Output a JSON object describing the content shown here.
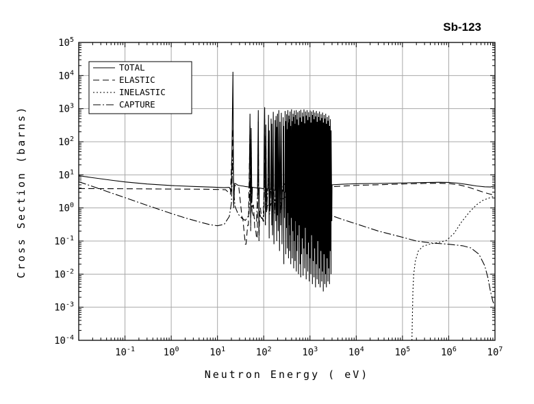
{
  "title": "Sb-123",
  "axes": {
    "x_log_min": -2,
    "x_log_max": 7,
    "y_log_min": -4,
    "y_log_max": 5,
    "x_tick_exponents": [
      -1,
      0,
      1,
      2,
      3,
      4,
      5,
      6,
      7
    ],
    "y_tick_exponents": [
      5,
      4,
      3,
      2,
      1,
      0,
      -1,
      -2,
      -3,
      -4
    ],
    "grid_color": "#a8a8a8",
    "line_color": "#000000"
  },
  "chart_data": {
    "type": "line",
    "title": "Sb-123",
    "xlabel": "Neutron Energy ( eV)",
    "ylabel": "Cross Section (barns)",
    "xscale": "log",
    "yscale": "log",
    "xlim": [
      0.01,
      10000000
    ],
    "ylim": [
      0.0001,
      100000
    ],
    "grid": true,
    "legend_position": "top-left",
    "series": [
      {
        "name": "TOTAL",
        "dash": "",
        "points": [
          [
            0.01,
            9.4
          ],
          [
            0.02,
            8.2
          ],
          [
            0.05,
            6.9
          ],
          [
            0.1,
            6.1
          ],
          [
            0.3,
            5.3
          ],
          [
            1,
            4.75
          ],
          [
            3,
            4.45
          ],
          [
            8,
            4.25
          ],
          [
            14,
            4.1
          ],
          [
            18,
            4.2
          ],
          [
            20,
            3.1
          ],
          [
            21.6,
            13000,
            1.2
          ],
          [
            23.5,
            5.5,
            5.5
          ],
          [
            28,
            4.8,
            4.8
          ],
          [
            34,
            4.6,
            4.6
          ],
          [
            41,
            4.4,
            4.4
          ],
          [
            47,
            4.3,
            4.3
          ],
          [
            50.5,
            700,
            0.5
          ],
          [
            53.5,
            260,
            1.5
          ],
          [
            57,
            4.2,
            4.2
          ],
          [
            64,
            4.1,
            4.1
          ],
          [
            71,
            4.0,
            4.0
          ],
          [
            76.3,
            900,
            0.15
          ],
          [
            80,
            4.0,
            4.0
          ],
          [
            88,
            3.9,
            3.9
          ],
          [
            97,
            3.8,
            3.8
          ],
          [
            104.8,
            1100,
            0.3
          ],
          [
            111.4,
            330,
            0.8
          ],
          [
            118,
            3.8,
            3.8
          ],
          [
            126.8,
            650,
            0.12
          ],
          [
            131.9,
            220,
            0.9
          ],
          [
            138,
            3.6,
            3.6
          ],
          [
            144.3,
            500,
            0.3
          ],
          [
            149.9,
            350,
            0.15
          ],
          [
            160.8,
            800,
            0.08
          ],
          [
            168,
            3.4,
            3.4
          ],
          [
            176,
            450,
            0.4
          ],
          [
            184.7,
            600,
            0.1
          ],
          [
            191.8,
            280,
            0.6
          ],
          [
            198.5,
            700,
            0.2
          ],
          [
            212,
            900,
            0.05
          ],
          [
            225,
            400,
            0.3
          ],
          [
            240,
            750,
            0.08
          ],
          [
            252,
            3.2,
            3.2
          ],
          [
            263,
            550,
            0.02
          ],
          [
            270,
            300,
            0.5
          ],
          [
            281,
            3.0,
            3.0
          ],
          [
            290,
            850,
            0.04
          ],
          [
            299,
            420,
            0.25
          ],
          [
            312,
            680,
            0.06
          ],
          [
            322,
            240,
            0.7
          ],
          [
            332,
            900,
            0.03
          ],
          [
            341,
            380,
            0.3
          ],
          [
            350,
            620,
            0.05
          ],
          [
            361,
            480,
            0.15
          ],
          [
            371,
            820,
            0.02
          ],
          [
            383,
            300,
            0.5
          ],
          [
            399,
            950,
            0.03
          ],
          [
            413,
            420,
            0.2
          ],
          [
            430,
            700,
            0.015
          ],
          [
            444,
            560,
            0.1
          ],
          [
            459,
            880,
            0.025
          ],
          [
            476,
            350,
            0.4
          ],
          [
            489,
            640,
            0.012
          ],
          [
            505,
            900,
            0.05
          ],
          [
            525,
            470,
            0.15
          ],
          [
            545,
            780,
            0.01
          ],
          [
            566,
            320,
            0.3
          ],
          [
            588,
            860,
            0.02
          ],
          [
            611,
            540,
            0.008
          ],
          [
            635,
            920,
            0.04
          ],
          [
            660,
            400,
            0.12
          ],
          [
            686,
            760,
            0.009
          ],
          [
            713,
            580,
            0.06
          ],
          [
            741,
            950,
            0.015
          ],
          [
            770,
            360,
            0.25
          ],
          [
            800,
            820,
            0.007
          ],
          [
            832,
            620,
            0.04
          ],
          [
            865,
            900,
            0.012
          ],
          [
            899,
            450,
            0.09
          ],
          [
            934,
            780,
            0.006
          ],
          [
            971,
            560,
            0.03
          ],
          [
            1010,
            880,
            0.01
          ],
          [
            1050,
            380,
            0.15
          ],
          [
            1091,
            820,
            0.005
          ],
          [
            1134,
            640,
            0.025
          ],
          [
            1179,
            900,
            0.008
          ],
          [
            1225,
            480,
            0.06
          ],
          [
            1273,
            760,
            0.004
          ],
          [
            1323,
            580,
            0.02
          ],
          [
            1375,
            850,
            0.007
          ],
          [
            1429,
            400,
            0.1
          ],
          [
            1486,
            720,
            0.005
          ],
          [
            1544,
            560,
            0.015
          ],
          [
            1605,
            820,
            0.004
          ],
          [
            1668,
            440,
            0.05
          ],
          [
            1734,
            680,
            0.006
          ],
          [
            1802,
            520,
            0.012
          ],
          [
            1873,
            760,
            0.003
          ],
          [
            1947,
            380,
            0.04
          ],
          [
            2024,
            640,
            0.005
          ],
          [
            2104,
            500,
            0.01
          ],
          [
            2187,
            700,
            0.004
          ],
          [
            2273,
            350,
            0.03
          ],
          [
            2362,
            560,
            0.006
          ],
          [
            2455,
            430,
            0.015
          ],
          [
            2552,
            620,
            0.005
          ],
          [
            2653,
            300,
            0.05
          ],
          [
            2757,
            480,
            0.01
          ],
          [
            2866,
            220,
            0.4
          ],
          [
            3000,
            5.0
          ],
          [
            5000,
            5.2
          ],
          [
            10000,
            5.4
          ],
          [
            30000,
            5.5
          ],
          [
            100000,
            5.7
          ],
          [
            300000,
            5.85
          ],
          [
            600000,
            5.95
          ],
          [
            1000000,
            5.9
          ],
          [
            1600000,
            5.6
          ],
          [
            2500000,
            5.1
          ],
          [
            4000000,
            4.6
          ],
          [
            6000000,
            4.35
          ],
          [
            8000000,
            4.3
          ],
          [
            10000000,
            4.6
          ]
        ]
      },
      {
        "name": "ELASTIC",
        "dash": "9,5",
        "points": [
          [
            0.01,
            3.85
          ],
          [
            0.1,
            3.8
          ],
          [
            1,
            3.72
          ],
          [
            5,
            3.68
          ],
          [
            10,
            3.62
          ],
          [
            15,
            3.55
          ],
          [
            19,
            2.6
          ],
          [
            21.6,
            250,
            1.0
          ],
          [
            23.5,
            4.8,
            4.8
          ],
          [
            28,
            4.2,
            4.2
          ],
          [
            34,
            0.5,
            0.5
          ],
          [
            40,
            0.08,
            0.08
          ],
          [
            45,
            0.3,
            0.3
          ],
          [
            50.5,
            300,
            0.2
          ],
          [
            53.5,
            120,
            0.8
          ],
          [
            58,
            1.2,
            1.2
          ],
          [
            64,
            0.25,
            0.25
          ],
          [
            70,
            0.12,
            0.12
          ],
          [
            76.3,
            400,
            0.1
          ],
          [
            82,
            1.0,
            1.0
          ],
          [
            90,
            0.5,
            0.5
          ],
          [
            97,
            0.4,
            0.4
          ],
          [
            104.8,
            500,
            0.3
          ],
          [
            111.4,
            150,
            0.7
          ],
          [
            120,
            1.2,
            1.2
          ],
          [
            130,
            1.0,
            1.0
          ],
          [
            145,
            1.4,
            1.4
          ],
          [
            160,
            1.8,
            1.8
          ],
          [
            180,
            1.6,
            1.6
          ],
          [
            200,
            2.0,
            2.0
          ],
          [
            250,
            1.9,
            1.9
          ],
          [
            300,
            2.2,
            2.2
          ],
          [
            400,
            2.0,
            2.0
          ],
          [
            500,
            2.3,
            2.3
          ],
          [
            700,
            2.5,
            2.5
          ],
          [
            1000,
            2.7,
            2.7
          ],
          [
            1500,
            3.1,
            3.1
          ],
          [
            2000,
            3.4,
            3.4
          ],
          [
            2900,
            4.1,
            4.1
          ],
          [
            3000,
            4.4
          ],
          [
            10000,
            4.8
          ],
          [
            30000,
            5.0
          ],
          [
            100000,
            5.3
          ],
          [
            300000,
            5.5
          ],
          [
            600000,
            5.55
          ],
          [
            1000000,
            5.45
          ],
          [
            1600000,
            5.05
          ],
          [
            2500000,
            4.35
          ],
          [
            4000000,
            3.5
          ],
          [
            6000000,
            2.9
          ],
          [
            8000000,
            2.6
          ],
          [
            10000000,
            2.4
          ]
        ]
      },
      {
        "name": "INELASTIC",
        "dash": "2,3",
        "points": [
          [
            160000,
            0.0001
          ],
          [
            168000,
            0.003
          ],
          [
            175000,
            0.01
          ],
          [
            190000,
            0.025
          ],
          [
            220000,
            0.05
          ],
          [
            280000,
            0.07
          ],
          [
            400000,
            0.082
          ],
          [
            600000,
            0.09
          ],
          [
            900000,
            0.105
          ],
          [
            1300000,
            0.17
          ],
          [
            1900000,
            0.38
          ],
          [
            2800000,
            0.75
          ],
          [
            4000000,
            1.25
          ],
          [
            5500000,
            1.7
          ],
          [
            7500000,
            2.0
          ],
          [
            10000000,
            2.3
          ]
        ]
      },
      {
        "name": "CAPTURE",
        "dash": "11,3,2,3",
        "points": [
          [
            0.01,
            6.2
          ],
          [
            0.025,
            4.0
          ],
          [
            0.05,
            2.85
          ],
          [
            0.1,
            2.05
          ],
          [
            0.3,
            1.2
          ],
          [
            1,
            0.68
          ],
          [
            2,
            0.5
          ],
          [
            4,
            0.38
          ],
          [
            7,
            0.31
          ],
          [
            10,
            0.29
          ],
          [
            14,
            0.32
          ],
          [
            18,
            0.55
          ],
          [
            20,
            1.4
          ],
          [
            21.6,
            60
          ],
          [
            22.4,
            3.2
          ],
          [
            24,
            1.1
          ],
          [
            28,
            0.65
          ],
          [
            34,
            0.48
          ],
          [
            40,
            0.42
          ],
          [
            48,
            0.6
          ],
          [
            50.5,
            8
          ],
          [
            52,
            1.1
          ],
          [
            53.5,
            4
          ],
          [
            56,
            0.75
          ],
          [
            64,
            0.45
          ],
          [
            70,
            0.4
          ],
          [
            76.3,
            12
          ],
          [
            79,
            0.75
          ],
          [
            88,
            0.5
          ],
          [
            97,
            0.45
          ],
          [
            104.8,
            15
          ],
          [
            108,
            0.95
          ],
          [
            111.4,
            5
          ],
          [
            115,
            0.75
          ],
          [
            126.8,
            8
          ],
          [
            135,
            0.65
          ],
          [
            144.3,
            6
          ],
          [
            155,
            0.6
          ],
          [
            160.8,
            9
          ],
          [
            170,
            0.65
          ],
          [
            184.7,
            7
          ],
          [
            195,
            0.6
          ],
          [
            212,
            8
          ],
          [
            230,
            0.65
          ],
          [
            263,
            6
          ],
          [
            290,
            5
          ],
          [
            330,
            4
          ],
          [
            400,
            3
          ],
          [
            500,
            2
          ],
          [
            700,
            1.4
          ],
          [
            1000,
            1.0
          ],
          [
            1500,
            0.8
          ],
          [
            2000,
            0.7
          ],
          [
            2900,
            0.6
          ],
          [
            3000,
            0.58
          ],
          [
            5000,
            0.45
          ],
          [
            10000,
            0.33
          ],
          [
            30000,
            0.2
          ],
          [
            100000,
            0.13
          ],
          [
            200000,
            0.1
          ],
          [
            400000,
            0.088
          ],
          [
            1000000,
            0.08
          ],
          [
            2000000,
            0.072
          ],
          [
            3000000,
            0.062
          ],
          [
            4500000,
            0.04
          ],
          [
            6000000,
            0.018
          ],
          [
            7000000,
            0.008
          ],
          [
            8000000,
            0.003
          ],
          [
            9000000,
            0.0015
          ],
          [
            10000000,
            0.0011
          ]
        ]
      }
    ]
  }
}
